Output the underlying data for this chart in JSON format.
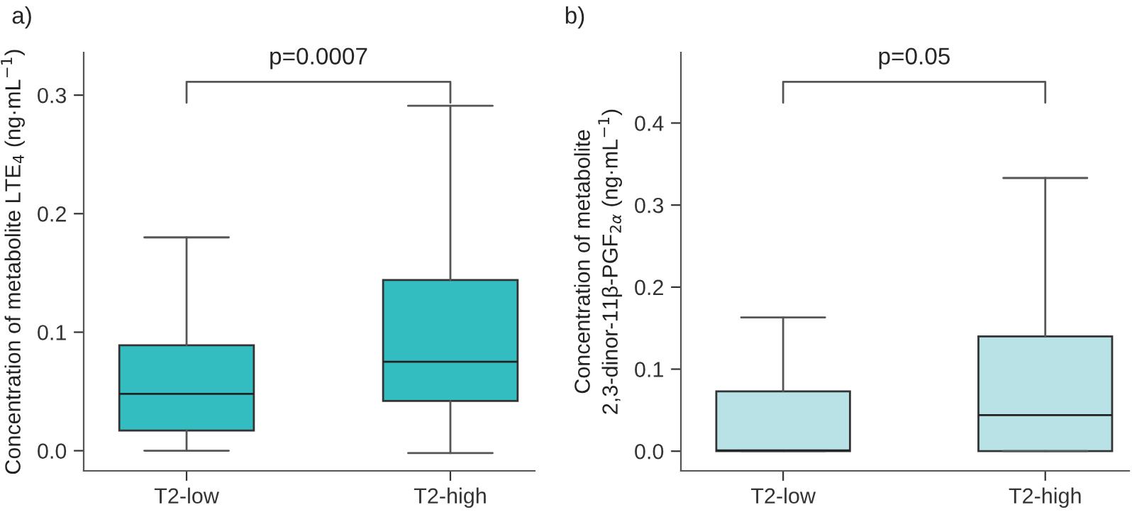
{
  "chart_data": [
    {
      "type": "box",
      "categories": [
        "T2-low",
        "T2-high"
      ],
      "ylabel": "Concentration of metabolite LTE$_{4}$ (ng·mL$^{−1}$)",
      "ylim": [
        -0.017,
        0.336
      ],
      "yticks": [
        {
          "value": 0,
          "label": "0.0"
        },
        0.1,
        0.2,
        0.3
      ],
      "color": "#33bdc1",
      "boxes": [
        {
          "low": 0.0,
          "q1": 0.017,
          "median": 0.048,
          "q3": 0.089,
          "high": 0.18
        },
        {
          "low": -0.002,
          "q1": 0.042,
          "median": 0.075,
          "q3": 0.144,
          "high": 0.291
        }
      ],
      "annotations": [
        "a)",
        "p=0.0007"
      ]
    },
    {
      "type": "box",
      "categories": [
        "T2-low",
        "T2-high"
      ],
      "ylabel": "Concentration of metabolite\n2,3-dinor-11β-PGF$_{2α}$ (ng·mL$^{−1}$)",
      "ylim": [
        -0.024,
        0.486
      ],
      "yticks": [
        {
          "value": 0,
          "label": "0.0"
        },
        0.1,
        0.2,
        0.3,
        0.4
      ],
      "color": "#b8e2e6",
      "boxes": [
        {
          "low": 0.0,
          "q1": 0.0,
          "median": 0.001,
          "q3": 0.073,
          "high": 0.163
        },
        {
          "low": 0.0,
          "q1": 0.0,
          "median": 0.044,
          "q3": 0.14,
          "high": 0.333
        }
      ],
      "annotations": [
        "b)",
        "p=0.05"
      ]
    }
  ]
}
